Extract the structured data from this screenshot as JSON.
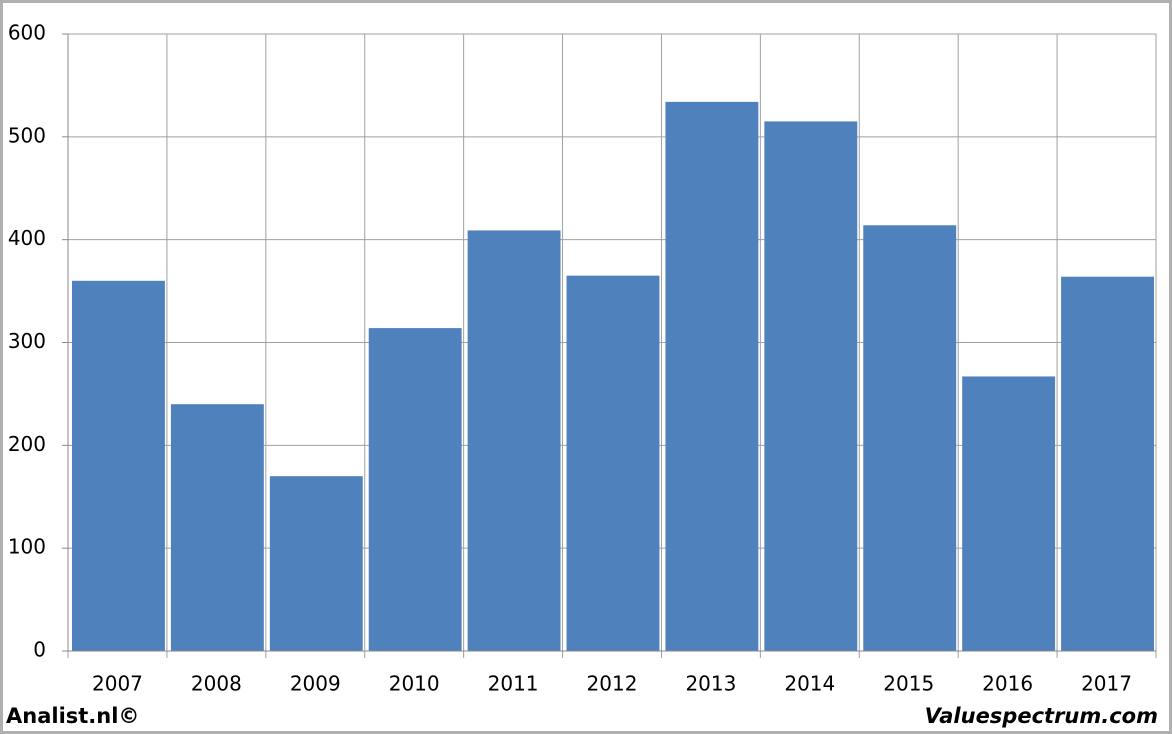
{
  "chart_data": {
    "type": "bar",
    "categories": [
      "2007",
      "2008",
      "2009",
      "2010",
      "2011",
      "2012",
      "2013",
      "2014",
      "2015",
      "2016",
      "2017"
    ],
    "values": [
      360,
      240,
      170,
      314,
      409,
      365,
      534,
      515,
      414,
      267,
      364
    ],
    "color": "#4f81bd",
    "ylim": [
      0,
      600
    ],
    "yticks": [
      0,
      100,
      200,
      300,
      400,
      500,
      600
    ],
    "grid": true
  },
  "footer": {
    "left": "Analist.nl©",
    "right": "Valuespectrum.com"
  }
}
